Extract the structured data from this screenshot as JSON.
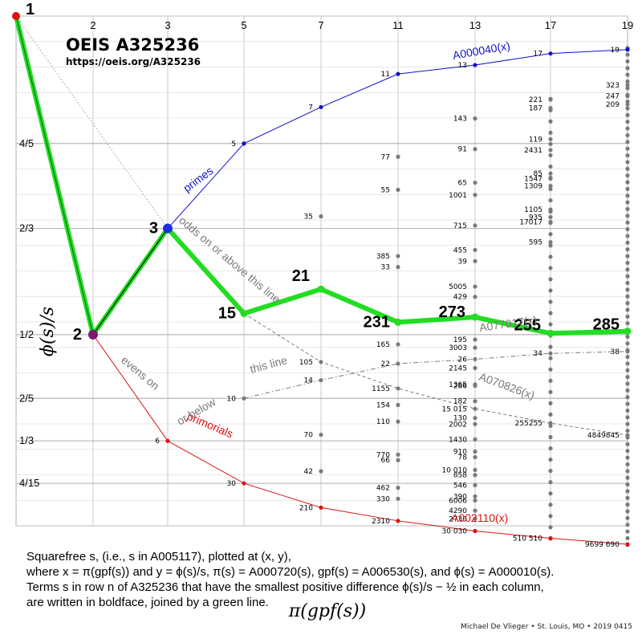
{
  "title": "OEIS A325236",
  "url": "https://oeis.org/A325236",
  "credit": "Michael De Vlieger • St. Louis, MO • 2019 0415",
  "caption": {
    "line1": "Squarefree s, (i.e., s in A005117), plotted at (x, y),",
    "line2": "where x = π(gpf(s)) and y = ϕ(s)/s, π(s) = A000720(s), gpf(s) = A006530(s), and ϕ(s) = A000010(s).",
    "line3": "Terms s in row n of A325236 that have the smallest positive difference ϕ(s)/s − ½ in each column,",
    "line4": "are written in boldface, joined by a green line."
  },
  "annotations": {
    "primes": "primes",
    "primorials": "primorials",
    "odds": "odds on or above this line",
    "evens_a": "evens on",
    "evens_b": "or below",
    "this_line": "this line",
    "a000040": "A000040(x)",
    "a077017": "A077017(x)",
    "a070826": "A070826(x)",
    "a002110": "A002110(x)"
  },
  "colors": {
    "green": "#22dd22",
    "blue": "#1010cc",
    "red": "#dd1111",
    "gray": "#7a7a7a",
    "grid": "#c8c8c8"
  },
  "chart_data": {
    "type": "scatter",
    "xlabel": "π(gpf(s))",
    "ylabel": "ϕ(s)/s",
    "x_ticks": [
      {
        "x": 0,
        "label": ""
      },
      {
        "x": 1,
        "label": "2"
      },
      {
        "x": 2,
        "label": "3"
      },
      {
        "x": 3,
        "label": "5"
      },
      {
        "x": 4,
        "label": "7"
      },
      {
        "x": 5,
        "label": "11"
      },
      {
        "x": 6,
        "label": "13"
      },
      {
        "x": 7,
        "label": "17"
      },
      {
        "x": 8,
        "label": "19"
      }
    ],
    "y_ticks": [
      {
        "y": 0.8,
        "label": "4/5"
      },
      {
        "y": 0.6667,
        "label": "2/3"
      },
      {
        "y": 0.5,
        "label": "1/2"
      },
      {
        "y": 0.4,
        "label": "2/5"
      },
      {
        "y": 0.3333,
        "label": "1/3"
      },
      {
        "y": 0.2667,
        "label": "4/15"
      }
    ],
    "ylim": [
      0.2,
      1.0
    ],
    "xlim": [
      0,
      8
    ],
    "bold_terms": [
      {
        "s": "1",
        "x": 0,
        "y": 1.0
      },
      {
        "s": "2",
        "x": 1,
        "y": 0.5
      },
      {
        "s": "3",
        "x": 2,
        "y": 0.6667
      },
      {
        "s": "15",
        "x": 3,
        "y": 0.5333
      },
      {
        "s": "21",
        "x": 4,
        "y": 0.5714
      },
      {
        "s": "231",
        "x": 5,
        "y": 0.5195
      },
      {
        "s": "273",
        "x": 6,
        "y": 0.5275
      },
      {
        "s": "255",
        "x": 7,
        "y": 0.502
      },
      {
        "s": "285",
        "x": 8,
        "y": 0.5053
      }
    ],
    "primes_series": [
      {
        "s": "5",
        "x": 3,
        "y": 0.8
      },
      {
        "s": "7",
        "x": 4,
        "y": 0.8571
      },
      {
        "s": "11",
        "x": 5,
        "y": 0.9091
      },
      {
        "s": "13",
        "x": 6,
        "y": 0.9231
      },
      {
        "s": "17",
        "x": 7,
        "y": 0.9412
      },
      {
        "s": "19",
        "x": 8,
        "y": 0.9474
      }
    ],
    "primorials_series": [
      {
        "s": "6",
        "x": 2,
        "y": 0.3333
      },
      {
        "s": "30",
        "x": 3,
        "y": 0.2667
      },
      {
        "s": "210",
        "x": 4,
        "y": 0.2286
      },
      {
        "s": "2310",
        "x": 5,
        "y": 0.2078
      },
      {
        "s": "30 030",
        "x": 6,
        "y": 0.1918
      },
      {
        "s": "510 510",
        "x": 7,
        "y": 0.1805
      },
      {
        "s": "9699 690",
        "x": 8,
        "y": 0.171
      }
    ],
    "a077017_series": [
      {
        "s": "10",
        "x": 3,
        "y": 0.4
      },
      {
        "s": "14",
        "x": 4,
        "y": 0.4286
      },
      {
        "s": "22",
        "x": 5,
        "y": 0.4545
      },
      {
        "s": "26",
        "x": 6,
        "y": 0.4615
      },
      {
        "s": "34",
        "x": 7,
        "y": 0.4706
      },
      {
        "s": "38",
        "x": 8,
        "y": 0.4737
      }
    ],
    "a070826_series": [
      {
        "s": "105",
        "x": 4,
        "y": 0.4571
      },
      {
        "s": "1155",
        "x": 5,
        "y": 0.4156
      },
      {
        "s": "15 015",
        "x": 6,
        "y": 0.3836
      },
      {
        "s": "255255",
        "x": 7,
        "y": 0.3611
      },
      {
        "s": "4849845",
        "x": 8,
        "y": 0.3421
      }
    ],
    "other_labeled_points": [
      {
        "s": "35",
        "x": 4,
        "y": 0.6857
      },
      {
        "s": "70",
        "x": 4,
        "y": 0.3429
      },
      {
        "s": "42",
        "x": 4,
        "y": 0.2857
      },
      {
        "s": "77",
        "x": 5,
        "y": 0.7792
      },
      {
        "s": "55",
        "x": 5,
        "y": 0.7273
      },
      {
        "s": "385",
        "x": 5,
        "y": 0.6234
      },
      {
        "s": "33",
        "x": 5,
        "y": 0.6061
      },
      {
        "s": "165",
        "x": 5,
        "y": 0.4848
      },
      {
        "s": "154",
        "x": 5,
        "y": 0.3896
      },
      {
        "s": "110",
        "x": 5,
        "y": 0.3636
      },
      {
        "s": "770",
        "x": 5,
        "y": 0.3117
      },
      {
        "s": "66",
        "x": 5,
        "y": 0.303
      },
      {
        "s": "462",
        "x": 5,
        "y": 0.2597
      },
      {
        "s": "330",
        "x": 5,
        "y": 0.2424
      },
      {
        "s": "143",
        "x": 6,
        "y": 0.8392
      },
      {
        "s": "91",
        "x": 6,
        "y": 0.7912
      },
      {
        "s": "65",
        "x": 6,
        "y": 0.7385
      },
      {
        "s": "1001",
        "x": 6,
        "y": 0.7193
      },
      {
        "s": "715",
        "x": 6,
        "y": 0.6713
      },
      {
        "s": "455",
        "x": 6,
        "y": 0.633
      },
      {
        "s": "39",
        "x": 6,
        "y": 0.6154
      },
      {
        "s": "5005",
        "x": 6,
        "y": 0.5754
      },
      {
        "s": "429",
        "x": 6,
        "y": 0.5594
      },
      {
        "s": "195",
        "x": 6,
        "y": 0.4923
      },
      {
        "s": "3003",
        "x": 6,
        "y": 0.4795
      },
      {
        "s": "2145",
        "x": 6,
        "y": 0.4476
      },
      {
        "s": "1365",
        "x": 6,
        "y": 0.422
      },
      {
        "s": "286",
        "x": 6,
        "y": 0.4196
      },
      {
        "s": "182",
        "x": 6,
        "y": 0.3956
      },
      {
        "s": "130",
        "x": 6,
        "y": 0.3692
      },
      {
        "s": "2002",
        "x": 6,
        "y": 0.3596
      },
      {
        "s": "1430",
        "x": 6,
        "y": 0.3357
      },
      {
        "s": "910",
        "x": 6,
        "y": 0.3165
      },
      {
        "s": "78",
        "x": 6,
        "y": 0.3077
      },
      {
        "s": "10 010",
        "x": 6,
        "y": 0.2877
      },
      {
        "s": "858",
        "x": 6,
        "y": 0.2797
      },
      {
        "s": "546",
        "x": 6,
        "y": 0.2637
      },
      {
        "s": "390",
        "x": 6,
        "y": 0.2462
      },
      {
        "s": "6006",
        "x": 6,
        "y": 0.2398
      },
      {
        "s": "4290",
        "x": 6,
        "y": 0.2238
      },
      {
        "s": "2730",
        "x": 6,
        "y": 0.211
      },
      {
        "s": "221",
        "x": 7,
        "y": 0.8688
      },
      {
        "s": "187",
        "x": 7,
        "y": 0.8556
      },
      {
        "s": "119",
        "x": 7,
        "y": 0.8067
      },
      {
        "s": "2431",
        "x": 7,
        "y": 0.7897
      },
      {
        "s": "85",
        "x": 7,
        "y": 0.7529
      },
      {
        "s": "1547",
        "x": 7,
        "y": 0.7448
      },
      {
        "s": "1309",
        "x": 7,
        "y": 0.7334
      },
      {
        "s": "1105",
        "x": 7,
        "y": 0.6964
      },
      {
        "s": "935",
        "x": 7,
        "y": 0.6845
      },
      {
        "s": "17017",
        "x": 7,
        "y": 0.677
      },
      {
        "s": "595",
        "x": 7,
        "y": 0.6452
      },
      {
        "s": "323",
        "x": 8,
        "y": 0.8916
      },
      {
        "s": "247",
        "x": 8,
        "y": 0.8745
      },
      {
        "s": "209",
        "x": 8,
        "y": 0.8612
      }
    ],
    "unlabeled_column_dots": [
      {
        "x": 7,
        "y_from": 0.18,
        "y_to": 0.87,
        "count": 40
      },
      {
        "x": 8,
        "y_from": 0.17,
        "y_to": 0.95,
        "count": 75
      }
    ]
  }
}
